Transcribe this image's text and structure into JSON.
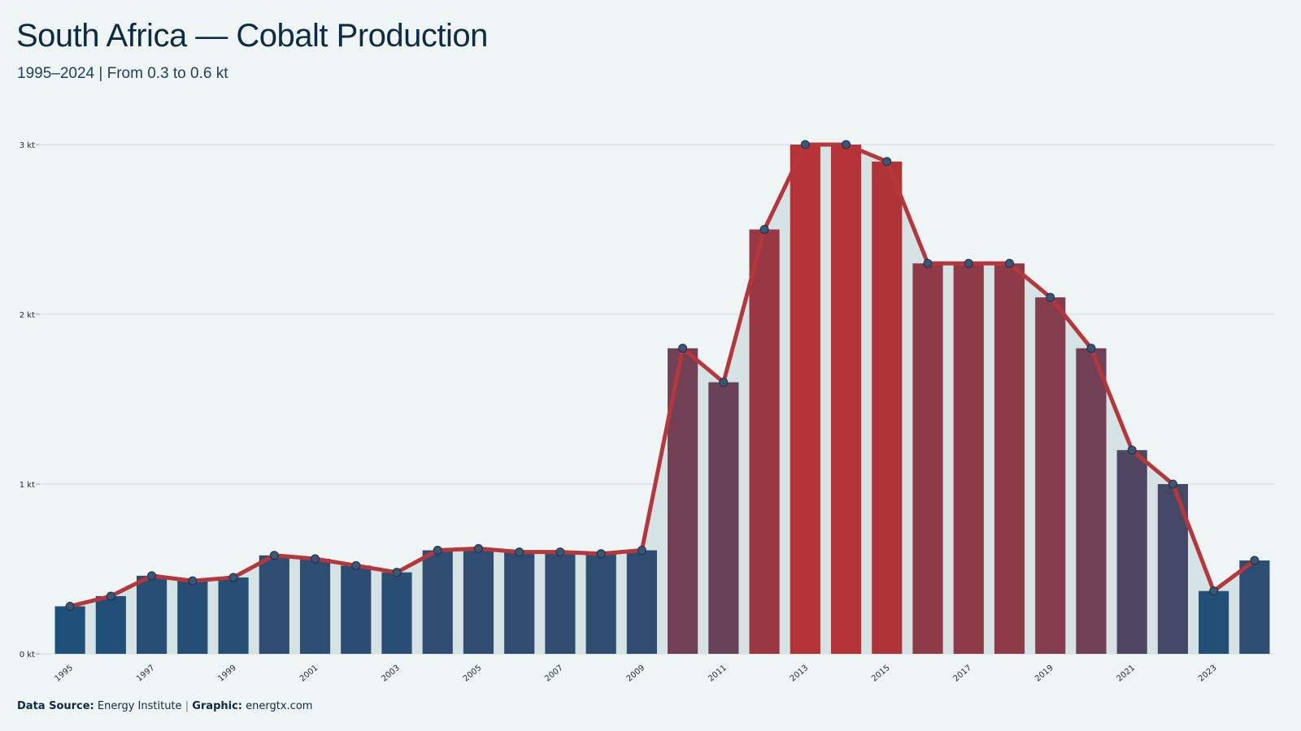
{
  "header": {
    "title": "South Africa — Cobalt Production",
    "subtitle": "1995–2024 | From 0.3 to 0.6 kt"
  },
  "footer": {
    "source_label": "Data Source:",
    "source_value": "Energy Institute",
    "separator": "|",
    "graphic_label": "Graphic:",
    "graphic_value": "energtx.com"
  },
  "colors": {
    "background": "#eff5f5",
    "line": "#b5373b",
    "area": "#d6e3e5",
    "bar_low": "#1e5079",
    "bar_high": "#b53336",
    "marker": "#3a5676",
    "gridline": "#cfdcdf"
  },
  "chart_data": {
    "type": "bar",
    "x": [
      "1995",
      "1996",
      "1997",
      "1998",
      "1999",
      "2000",
      "2001",
      "2002",
      "2003",
      "2004",
      "2005",
      "2006",
      "2007",
      "2008",
      "2009",
      "2010",
      "2011",
      "2012",
      "2013",
      "2014",
      "2015",
      "2016",
      "2017",
      "2018",
      "2019",
      "2020",
      "2021",
      "2022",
      "2023",
      "2024"
    ],
    "x_tick_labels": [
      "1995",
      "1997",
      "1999",
      "2001",
      "2003",
      "2005",
      "2007",
      "2009",
      "2011",
      "2013",
      "2015",
      "2017",
      "2019",
      "2021",
      "2023"
    ],
    "series": [
      {
        "values": [
          0.28,
          0.34,
          0.46,
          0.43,
          0.45,
          0.58,
          0.56,
          0.52,
          0.48,
          0.61,
          0.62,
          0.6,
          0.6,
          0.59,
          0.61,
          1.8,
          1.6,
          2.5,
          3.0,
          3.0,
          2.9,
          2.3,
          2.3,
          2.3,
          2.1,
          1.8,
          1.2,
          1.0,
          0.37,
          0.55
        ]
      }
    ],
    "y_ticks": [
      0,
      1,
      2,
      3
    ],
    "y_tick_labels": [
      "0 kt",
      "1 kt",
      "2 kt",
      "3 kt"
    ],
    "ylim": [
      0,
      3
    ],
    "unit": "kt",
    "overlay": "line with markers and shaded area",
    "grid": "horizontal",
    "legend": "none"
  }
}
